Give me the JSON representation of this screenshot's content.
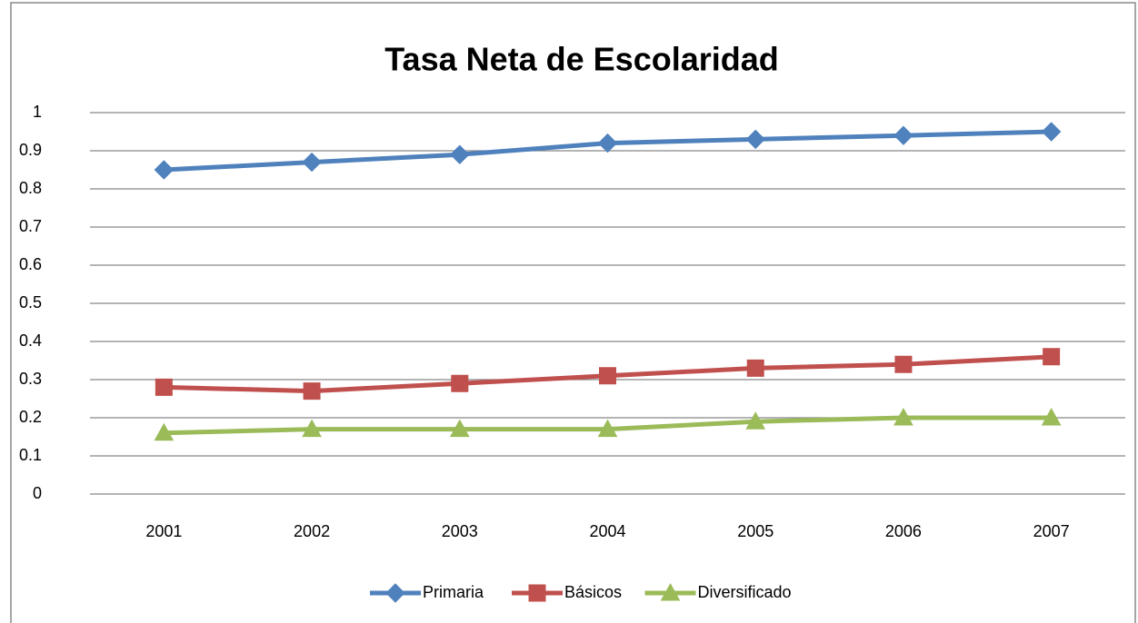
{
  "chart_data": {
    "type": "line",
    "title": "Tasa Neta de Escolaridad",
    "categories": [
      "2001",
      "2002",
      "2003",
      "2004",
      "2005",
      "2006",
      "2007"
    ],
    "series": [
      {
        "name": "Primaria",
        "color": "#4f81bd",
        "marker": "diamond",
        "values": [
          0.85,
          0.87,
          0.89,
          0.92,
          0.93,
          0.94,
          0.95
        ]
      },
      {
        "name": "Básicos",
        "color": "#c0504d",
        "marker": "square",
        "values": [
          0.28,
          0.27,
          0.29,
          0.31,
          0.33,
          0.34,
          0.36
        ]
      },
      {
        "name": "Diversificado",
        "color": "#9bbb59",
        "marker": "triangle",
        "values": [
          0.16,
          0.17,
          0.17,
          0.17,
          0.19,
          0.2,
          0.2
        ]
      }
    ],
    "ylim": [
      0,
      1
    ],
    "yticks": [
      0,
      0.1,
      0.2,
      0.3,
      0.4,
      0.5,
      0.6,
      0.7,
      0.8,
      0.9,
      1
    ],
    "grid": true,
    "legend": "bottom"
  }
}
